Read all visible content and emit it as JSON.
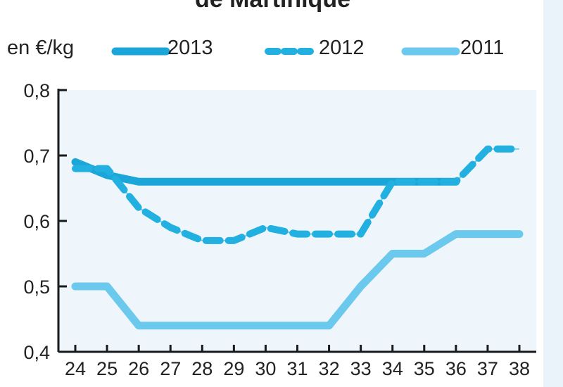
{
  "chart_data": {
    "type": "line",
    "title": "de Martinique",
    "unit_label": "en €/kg",
    "categories": [
      "24",
      "25",
      "26",
      "27",
      "28",
      "29",
      "30",
      "31",
      "32",
      "33",
      "34",
      "35",
      "36",
      "37",
      "38"
    ],
    "ylim": [
      0.4,
      0.8
    ],
    "y_ticks": [
      "0,4",
      "0,5",
      "0,6",
      "0,7",
      "0,8"
    ],
    "y_tick_values": [
      0.4,
      0.5,
      0.6,
      0.7,
      0.8
    ],
    "grid": false,
    "legend_position": "top",
    "series": [
      {
        "name": "2013",
        "style": "solid-thick",
        "color": "#1aa6d9",
        "values": [
          0.69,
          0.67,
          0.66,
          0.66,
          0.66,
          0.66,
          0.66,
          0.66,
          0.66,
          0.66,
          0.66,
          0.66,
          0.66,
          null,
          null
        ]
      },
      {
        "name": "2012",
        "style": "dashed",
        "color": "#22b0e0",
        "values": [
          0.68,
          0.68,
          0.62,
          0.59,
          0.57,
          0.57,
          0.59,
          0.58,
          0.58,
          0.58,
          0.66,
          0.66,
          0.66,
          0.71,
          0.71
        ]
      },
      {
        "name": "2011",
        "style": "solid-light",
        "color": "#6cc9ee",
        "values": [
          0.5,
          0.5,
          0.44,
          0.44,
          0.44,
          0.44,
          0.44,
          0.44,
          0.44,
          0.5,
          0.55,
          0.55,
          0.58,
          0.58,
          0.58
        ]
      }
    ]
  }
}
